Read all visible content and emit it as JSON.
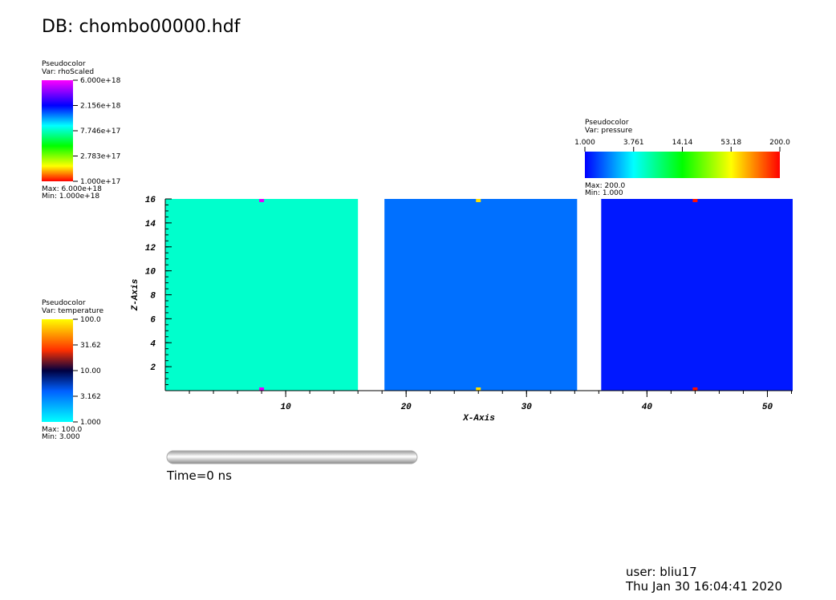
{
  "header": {
    "title": "DB: chombo00000.hdf"
  },
  "legends": [
    {
      "plot": "Pseudocolor",
      "var": "Var: rhoScaled",
      "ticks": [
        "6.000e+18",
        "2.156e+18",
        "7.746e+17",
        "2.783e+17",
        "1.000e+17"
      ],
      "max": "Max:  6.000e+18",
      "min": "Min:  1.000e+18"
    },
    {
      "plot": "Pseudocolor",
      "var": "Var: temperature",
      "ticks": [
        "100.0",
        "31.62",
        "10.00",
        "3.162",
        "1.000"
      ],
      "max": "Max:  100.0",
      "min": "Min:  3.000"
    },
    {
      "plot": "Pseudocolor",
      "var": "Var: pressure",
      "ticks": [
        "1.000",
        "3.761",
        "14.14",
        "53.18",
        "200.0"
      ],
      "max": "Max:  200.0",
      "min": "Min:  1.000"
    }
  ],
  "chart_data": {
    "type": "pseudocolor",
    "xlabel": "X-Axis",
    "ylabel": "Z-Axis",
    "xlim": [
      0,
      52.1
    ],
    "ylim": [
      0,
      16
    ],
    "xticks": [
      10,
      20,
      30,
      40,
      50
    ],
    "yticks": [
      2,
      4,
      6,
      8,
      10,
      12,
      14,
      16
    ],
    "blocks": [
      {
        "x": [
          0,
          16
        ],
        "color": "#00ffcc"
      },
      {
        "x": [
          18.2,
          34.2
        ],
        "color": "#0070ff"
      },
      {
        "x": [
          36.2,
          52.1
        ],
        "color": "#0018ff"
      }
    ],
    "markers": {
      "x": [
        8,
        26,
        44
      ],
      "colors": [
        "#e000ff",
        "#ffe000",
        "#ff1000"
      ]
    }
  },
  "time": "Time=0 ns",
  "footer": {
    "user": "user: bliu17",
    "date": "Thu Jan 30 16:04:41 2020"
  }
}
